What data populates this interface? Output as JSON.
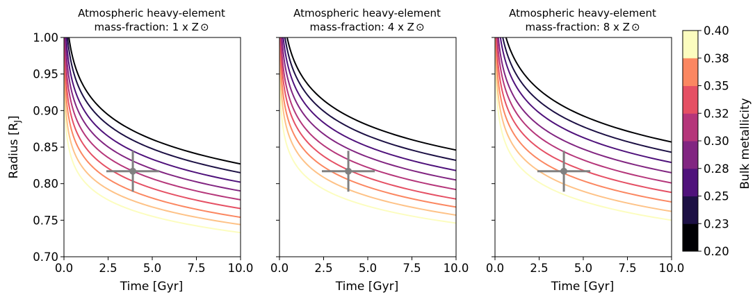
{
  "figure": {
    "ylabel": "Radius [R",
    "ylabel_sub": "J",
    "ylabel_close": "]",
    "colorbar": {
      "label": "Bulk metallicity",
      "ticks": [
        "0.20",
        "0.23",
        "0.25",
        "0.28",
        "0.30",
        "0.32",
        "0.35",
        "0.38",
        "0.40"
      ],
      "colors": [
        "#000004",
        "#1c1044",
        "#4f127b",
        "#812581",
        "#b5367a",
        "#e55064",
        "#fb8761",
        "#fec287",
        "#fcfdbf"
      ]
    }
  },
  "chart_data": [
    {
      "type": "line",
      "title_line1": "Atmospheric heavy-element",
      "title_line2": "mass-fraction: 1 x Z",
      "title_symbol": "⊙",
      "xlabel": "Time [Gyr]",
      "ylabel": "Radius [RJ]",
      "xlim": [
        0,
        10
      ],
      "ylim": [
        0.7,
        1.0
      ],
      "xticks": [
        "0.0",
        "2.5",
        "5.0",
        "7.5",
        "10.0"
      ],
      "yticks": [
        "0.70",
        "0.75",
        "0.80",
        "0.85",
        "0.90",
        "0.95",
        "1.00"
      ],
      "series_metallicity": [
        0.2,
        0.225,
        0.25,
        0.275,
        0.3,
        0.325,
        0.35,
        0.375,
        0.4
      ],
      "series_final_radius": [
        0.827,
        0.815,
        0.802,
        0.79,
        0.778,
        0.766,
        0.754,
        0.744,
        0.733
      ],
      "series_r2": [
        0.905,
        0.891,
        0.875,
        0.86,
        0.845,
        0.83,
        0.815,
        0.8,
        0.785
      ],
      "observation": {
        "x": 3.9,
        "y": 0.817,
        "xerr": 1.5,
        "yerr": 0.028
      }
    },
    {
      "type": "line",
      "title_line1": "Atmospheric heavy-element",
      "title_line2": "mass-fraction: 4 x Z",
      "title_symbol": "⊙",
      "xlabel": "Time [Gyr]",
      "xlim": [
        0,
        10
      ],
      "ylim": [
        0.7,
        1.0
      ],
      "xticks": [
        "0.0",
        "2.5",
        "5.0",
        "7.5",
        "10.0"
      ],
      "series_metallicity": [
        0.2,
        0.225,
        0.25,
        0.275,
        0.3,
        0.325,
        0.35,
        0.375,
        0.4
      ],
      "series_final_radius": [
        0.846,
        0.832,
        0.818,
        0.805,
        0.792,
        0.779,
        0.768,
        0.757,
        0.746
      ],
      "series_r2": [
        0.925,
        0.91,
        0.894,
        0.878,
        0.862,
        0.847,
        0.832,
        0.817,
        0.8
      ],
      "observation": {
        "x": 3.9,
        "y": 0.817,
        "xerr": 1.5,
        "yerr": 0.028
      }
    },
    {
      "type": "line",
      "title_line1": "Atmospheric heavy-element",
      "title_line2": "mass-fraction: 8 x Z",
      "title_symbol": "⊙",
      "xlabel": "Time [Gyr]",
      "xlim": [
        0,
        10
      ],
      "ylim": [
        0.7,
        1.0
      ],
      "xticks": [
        "0.0",
        "2.5",
        "5.0",
        "7.5",
        "10.0"
      ],
      "series_metallicity": [
        0.2,
        0.225,
        0.25,
        0.275,
        0.3,
        0.325,
        0.35,
        0.375,
        0.4
      ],
      "series_final_radius": [
        0.857,
        0.843,
        0.829,
        0.815,
        0.801,
        0.788,
        0.775,
        0.762,
        0.75
      ],
      "series_r2": [
        0.94,
        0.924,
        0.908,
        0.89,
        0.874,
        0.858,
        0.842,
        0.826,
        0.81
      ],
      "observation": {
        "x": 3.9,
        "y": 0.817,
        "xerr": 1.5,
        "yerr": 0.028
      }
    }
  ]
}
